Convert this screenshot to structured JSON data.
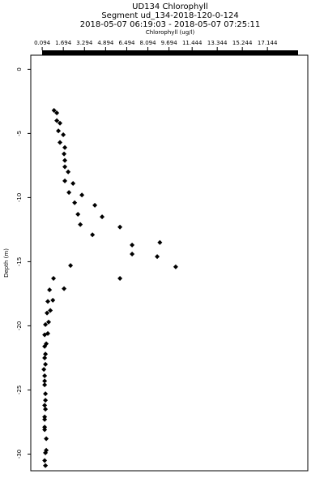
{
  "chart_data": {
    "type": "scatter",
    "title": [
      "UD134 Chlorophyll",
      "Segment ud_134-2018-120-0-124",
      "2018-05-07 06:19:03 - 2018-05-07 07:25:11"
    ],
    "x_label": "Chlorophyll (ug/l)",
    "y_label": "Depth (m)",
    "color": "#000000",
    "x": [
      0.99,
      1.2,
      1.2,
      1.44,
      1.32,
      1.69,
      1.44,
      1.81,
      1.75,
      1.81,
      1.81,
      2.06,
      2.43,
      1.81,
      2.12,
      3.1,
      2.55,
      4.08,
      2.8,
      4.63,
      2.98,
      3.9,
      5.98,
      6.9,
      9.0,
      6.9,
      8.8,
      10.2,
      2.24,
      0.95,
      5.98,
      1.75,
      0.65,
      0.9,
      0.52,
      0.71,
      0.46,
      0.58,
      0.34,
      0.52,
      0.28,
      0.4,
      0.28,
      0.34,
      0.28,
      0.34,
      0.22,
      0.28,
      0.28,
      0.28,
      0.34,
      0.34,
      0.28,
      0.34,
      0.28,
      0.28,
      0.28,
      0.28,
      0.4,
      0.4,
      0.34,
      0.28,
      0.34
    ],
    "values": [
      -3.2,
      -3.4,
      -4.0,
      -4.2,
      -4.8,
      -5.1,
      -5.7,
      -6.1,
      -6.6,
      -7.1,
      -7.6,
      -8.0,
      -8.9,
      -8.7,
      -9.6,
      -9.8,
      -10.4,
      -10.6,
      -11.3,
      -11.5,
      -12.1,
      -12.9,
      -12.3,
      -13.7,
      -13.5,
      -14.4,
      -14.6,
      -15.4,
      -15.3,
      -16.3,
      -16.3,
      -17.1,
      -17.2,
      -18.0,
      -18.1,
      -18.8,
      -19.0,
      -19.7,
      -19.9,
      -20.6,
      -20.7,
      -21.4,
      -21.6,
      -22.2,
      -22.5,
      -23.0,
      -23.4,
      -23.9,
      -24.3,
      -24.6,
      -25.3,
      -25.8,
      -26.2,
      -26.5,
      -27.1,
      -27.3,
      -27.9,
      -28.1,
      -28.8,
      -29.7,
      -29.9,
      -30.5,
      -30.9
    ],
    "xlim": [
      -0.77,
      20.2
    ],
    "ylim": [
      -31.3,
      1.1
    ],
    "xticks": [
      0.094,
      1.694,
      3.294,
      4.894,
      6.494,
      8.094,
      9.694,
      11.444,
      13.344,
      15.244,
      17.144
    ],
    "yticks": [
      0,
      -5,
      -10,
      -15,
      -20,
      -25,
      -30
    ]
  }
}
